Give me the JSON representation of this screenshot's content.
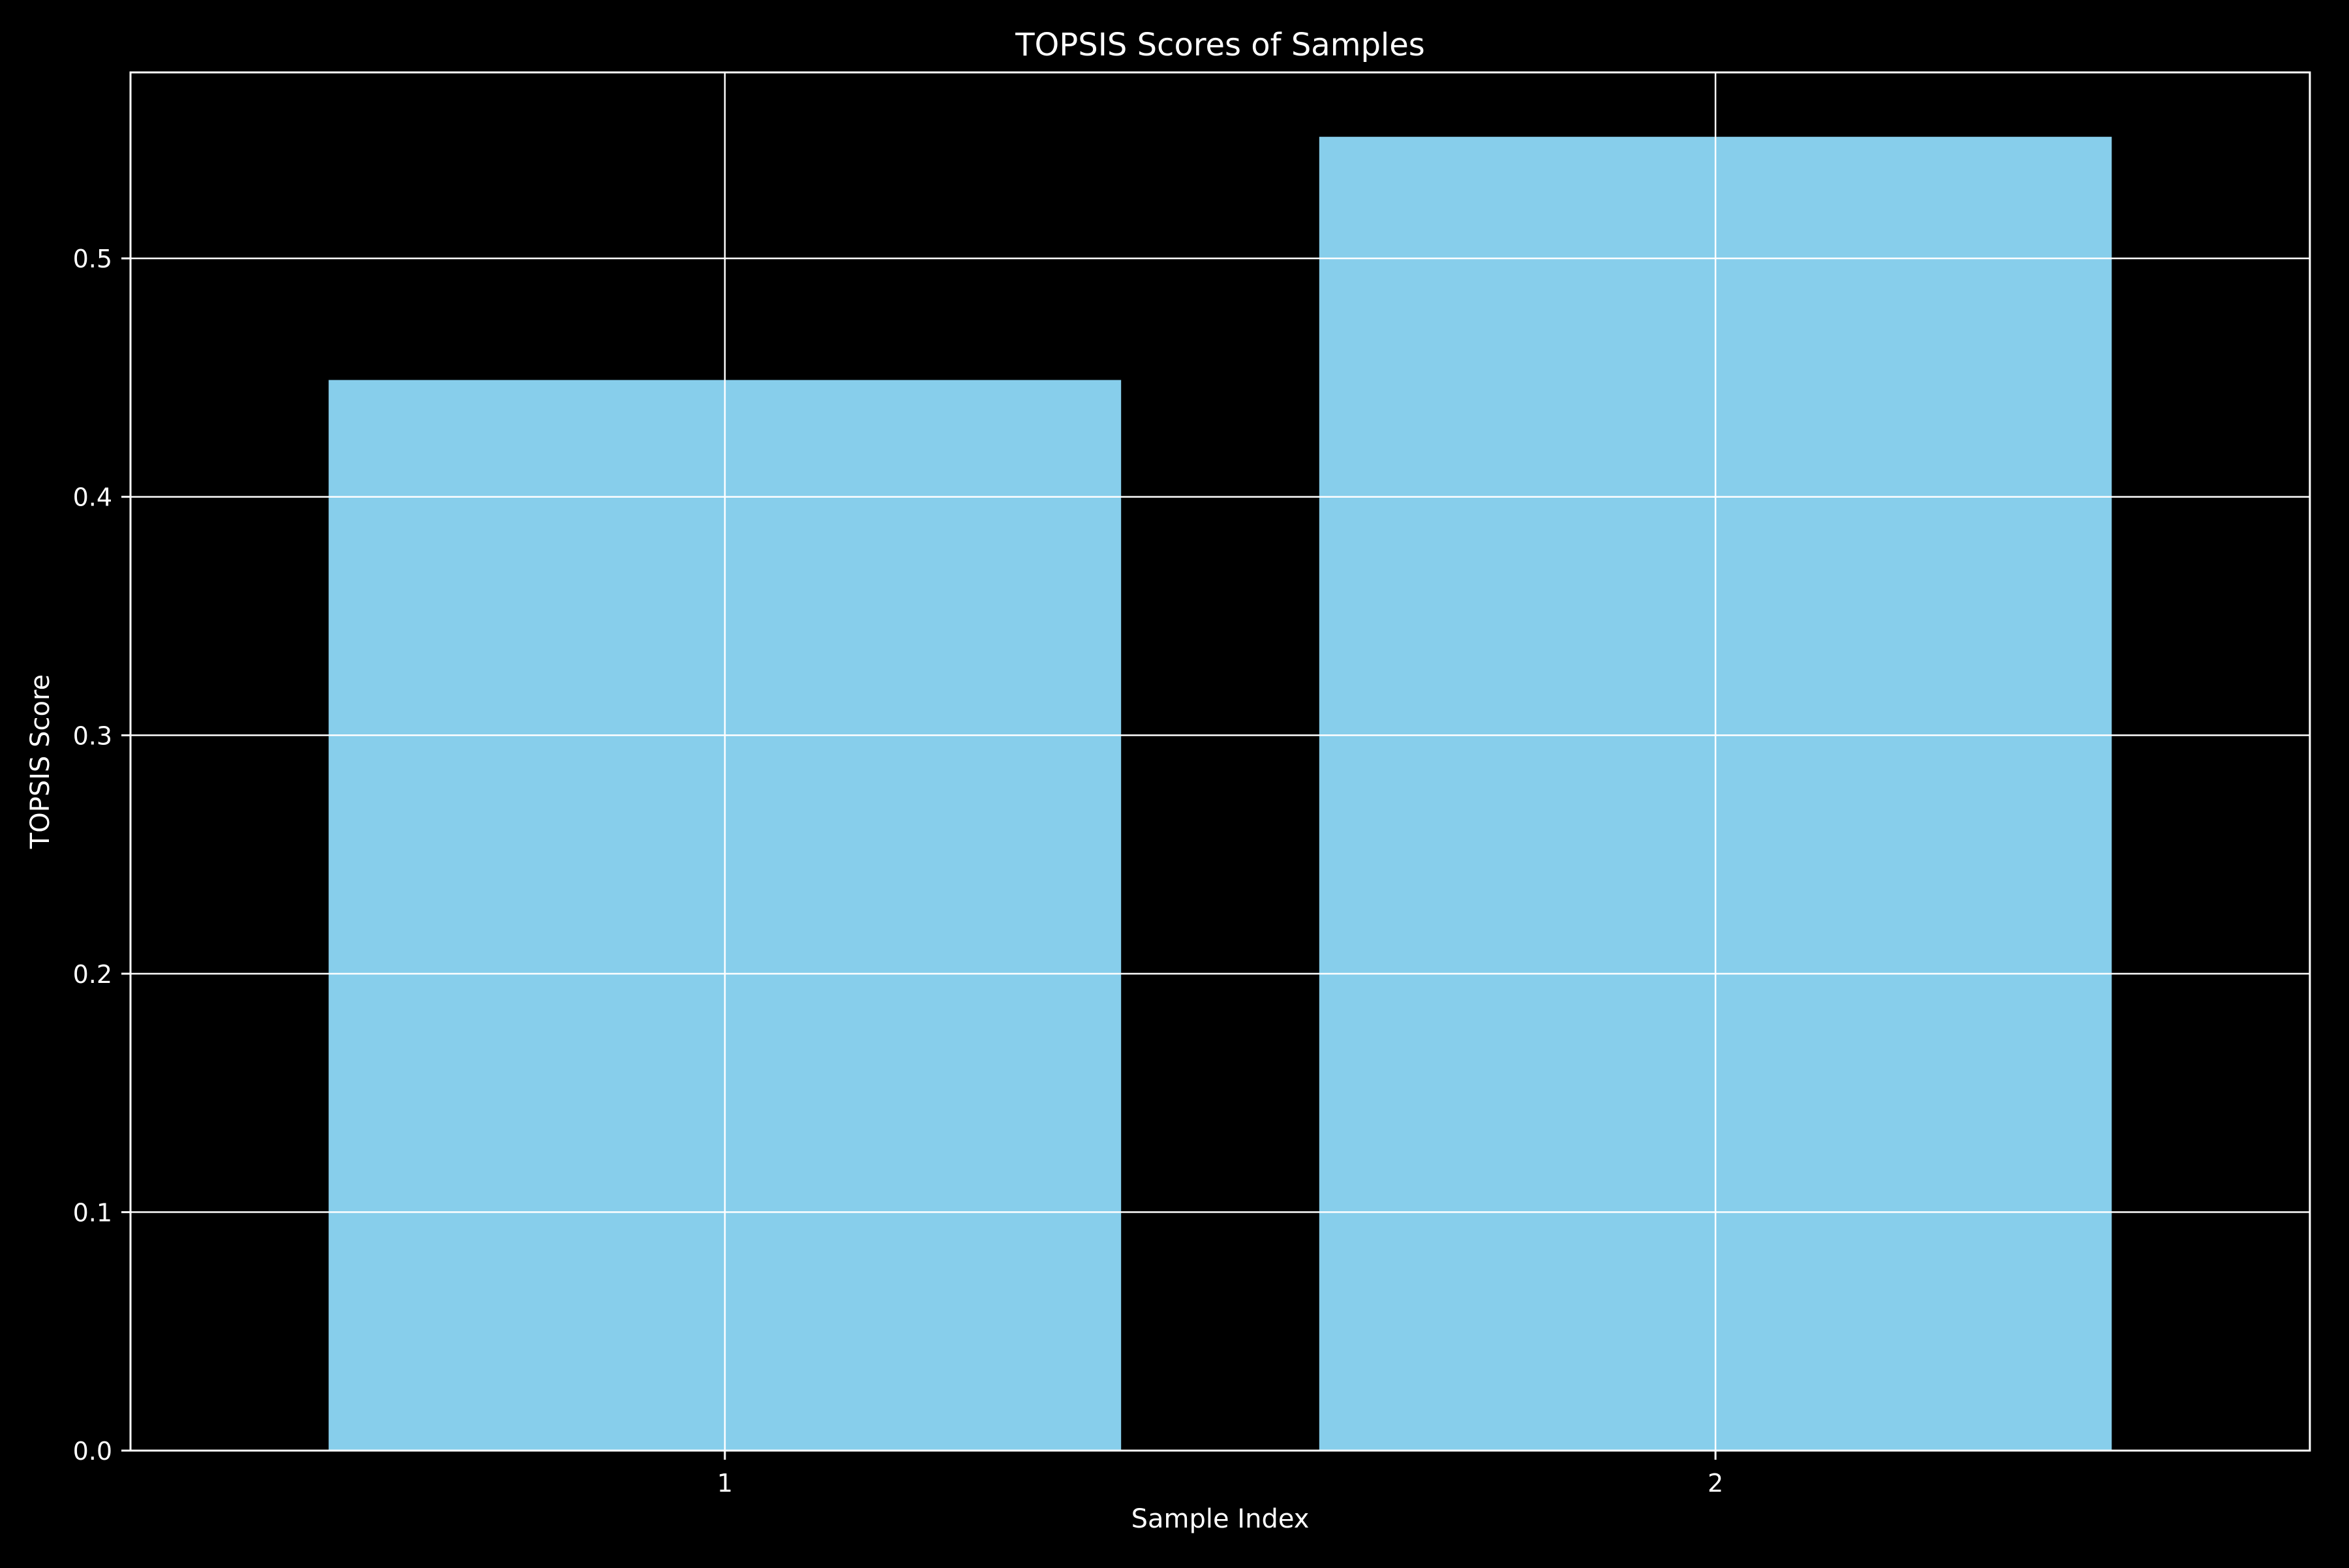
{
  "chart_data": {
    "type": "bar",
    "title": "TOPSIS Scores of Samples",
    "xlabel": "Sample Index",
    "ylabel": "TOPSIS Score",
    "categories": [
      "1",
      "2"
    ],
    "values": [
      0.449,
      0.551
    ],
    "ylim": [
      0,
      0.578
    ],
    "yticks": [
      0.0,
      0.1,
      0.2,
      0.3,
      0.4,
      0.5
    ],
    "ytick_labels": [
      "0.0",
      "0.1",
      "0.2",
      "0.3",
      "0.4",
      "0.5"
    ],
    "grid": true,
    "legend": "none",
    "colors": {
      "background": "#000000",
      "bar": "#87ceeb",
      "axes": "#ffffff",
      "grid": "#ffffff",
      "text": "#ffffff"
    }
  }
}
